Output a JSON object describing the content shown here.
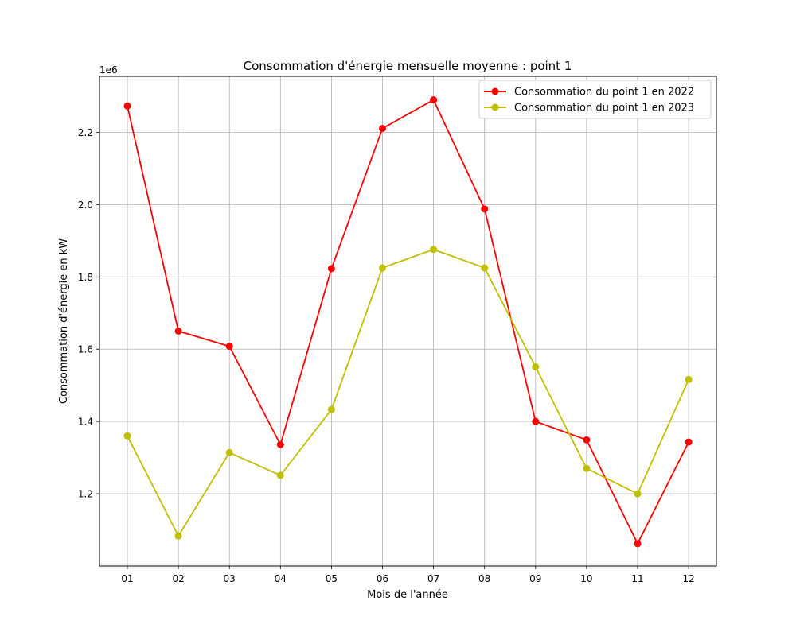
{
  "chart_data": {
    "type": "line",
    "title": "Consommation d'énergie mensuelle moyenne : point 1",
    "xlabel": "Mois de l'année",
    "ylabel": "Consommation d'énergie en kW",
    "y_offset_label": "1e6",
    "categories": [
      "01",
      "02",
      "03",
      "04",
      "05",
      "06",
      "07",
      "08",
      "09",
      "10",
      "11",
      "12"
    ],
    "y_ticks": [
      "1.2",
      "1.4",
      "1.6",
      "1.8",
      "2.0",
      "2.2"
    ],
    "ylim": [
      1.0,
      2.355
    ],
    "grid": true,
    "legend_position": "top-right",
    "series": [
      {
        "name": "Consommation du point 1 en 2022",
        "color": "#ff0000",
        "values": [
          2.273,
          1.65,
          1.608,
          1.336,
          1.823,
          2.211,
          2.29,
          1.988,
          1.4,
          1.349,
          1.062,
          1.343
        ]
      },
      {
        "name": "Consommation du point 1 en 2023",
        "color": "#bfbf00",
        "values": [
          1.36,
          1.083,
          1.314,
          1.251,
          1.433,
          1.825,
          1.876,
          1.825,
          1.551,
          1.27,
          1.2,
          1.516
        ]
      }
    ]
  }
}
